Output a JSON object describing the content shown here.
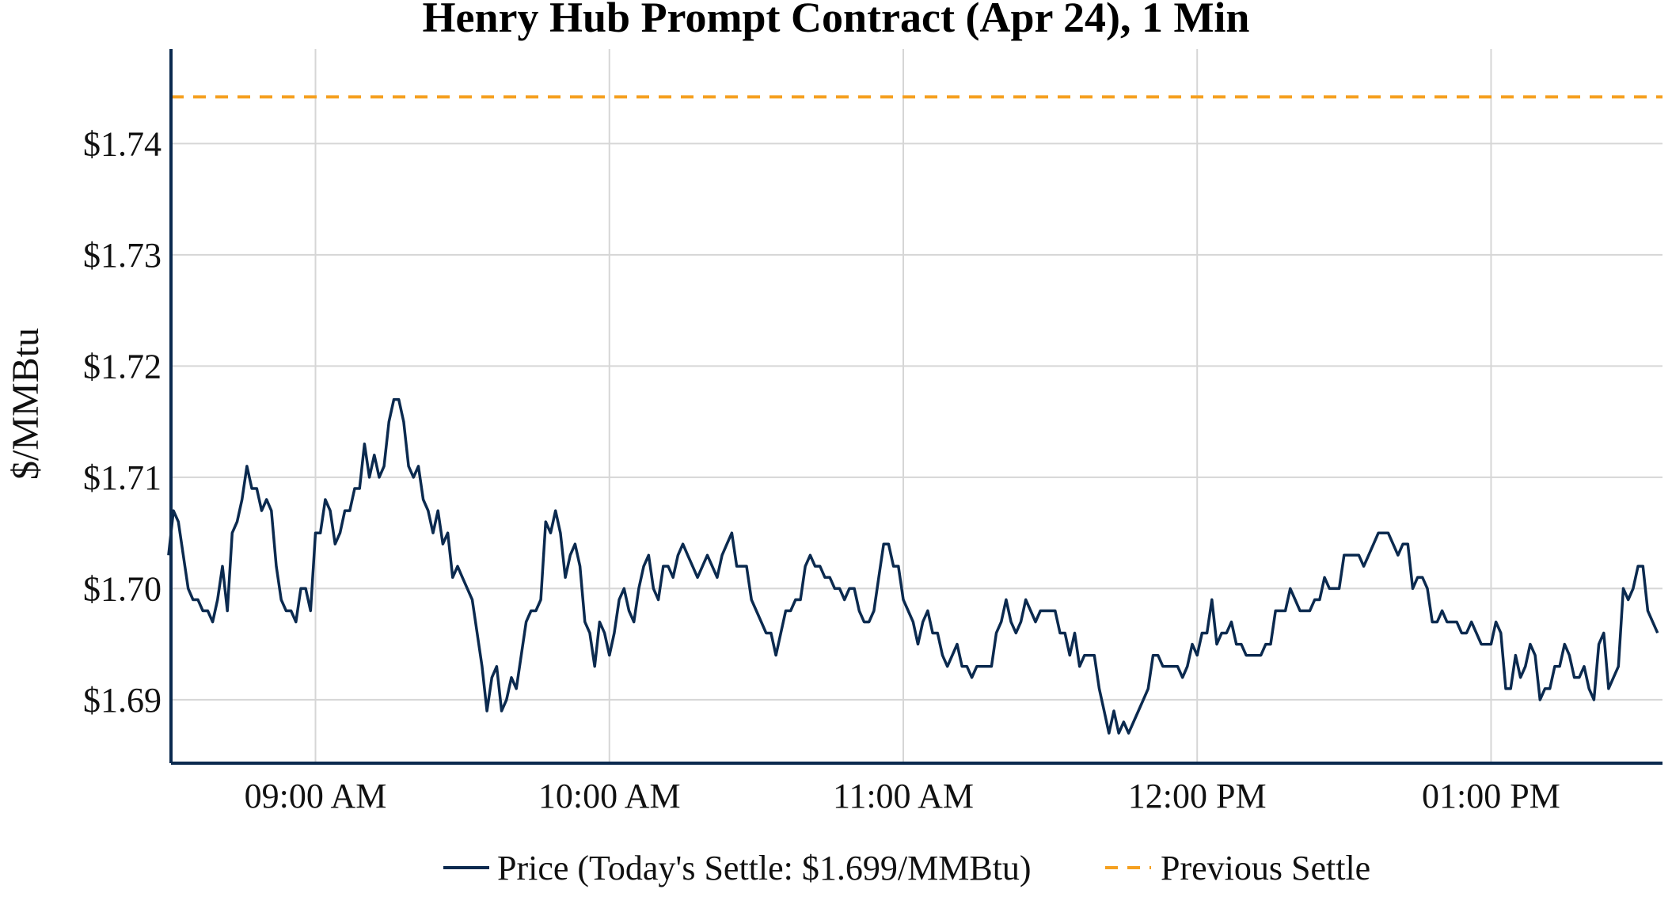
{
  "chart_data": {
    "type": "line",
    "title": "Henry Hub Prompt Contract (Apr 24), 1 Min",
    "ylabel": "$/MMBtu",
    "xlabel": "",
    "x_ticks": [
      {
        "label": "09:00 AM",
        "minutes": 540
      },
      {
        "label": "10:00 AM",
        "minutes": 600
      },
      {
        "label": "11:00 AM",
        "minutes": 660
      },
      {
        "label": "12:00 PM",
        "minutes": 720
      },
      {
        "label": "01:00 PM",
        "minutes": 780
      }
    ],
    "y_ticks": [
      {
        "label": "$1.69",
        "value": 1.69
      },
      {
        "label": "$1.70",
        "value": 1.7
      },
      {
        "label": "$1.71",
        "value": 1.71
      },
      {
        "label": "$1.72",
        "value": 1.72
      },
      {
        "label": "$1.73",
        "value": 1.73
      },
      {
        "label": "$1.74",
        "value": 1.74
      }
    ],
    "xlim": [
      510.5,
      815
    ],
    "ylim": [
      1.6843,
      1.7485
    ],
    "grid": true,
    "legend_placement": "bottom-center",
    "reference_line": {
      "name": "Previous Settle",
      "value": 1.7442,
      "color": "#f5a020",
      "style": "dashed"
    },
    "series": [
      {
        "name": "Price (Today's Settle: $1.699/MMBtu)",
        "color": "#0b2a4f",
        "start_minutes": 510,
        "step_minutes": 1,
        "values": [
          1.703,
          1.707,
          1.706,
          1.703,
          1.7,
          1.699,
          1.699,
          1.698,
          1.698,
          1.697,
          1.699,
          1.702,
          1.698,
          1.705,
          1.706,
          1.708,
          1.711,
          1.709,
          1.709,
          1.707,
          1.708,
          1.707,
          1.702,
          1.699,
          1.698,
          1.698,
          1.697,
          1.7,
          1.7,
          1.698,
          1.705,
          1.705,
          1.708,
          1.707,
          1.704,
          1.705,
          1.707,
          1.707,
          1.709,
          1.709,
          1.713,
          1.71,
          1.712,
          1.71,
          1.711,
          1.715,
          1.717,
          1.717,
          1.715,
          1.711,
          1.71,
          1.711,
          1.708,
          1.707,
          1.705,
          1.707,
          1.704,
          1.705,
          1.701,
          1.702,
          1.701,
          1.7,
          1.699,
          1.696,
          1.693,
          1.689,
          1.692,
          1.693,
          1.689,
          1.69,
          1.692,
          1.691,
          1.694,
          1.697,
          1.698,
          1.698,
          1.699,
          1.706,
          1.705,
          1.707,
          1.705,
          1.701,
          1.703,
          1.704,
          1.702,
          1.697,
          1.696,
          1.693,
          1.697,
          1.696,
          1.694,
          1.696,
          1.699,
          1.7,
          1.698,
          1.697,
          1.7,
          1.702,
          1.703,
          1.7,
          1.699,
          1.702,
          1.702,
          1.701,
          1.703,
          1.704,
          1.703,
          1.702,
          1.701,
          1.702,
          1.703,
          1.702,
          1.701,
          1.703,
          1.704,
          1.705,
          1.702,
          1.702,
          1.702,
          1.699,
          1.698,
          1.697,
          1.696,
          1.696,
          1.694,
          1.696,
          1.698,
          1.698,
          1.699,
          1.699,
          1.702,
          1.703,
          1.702,
          1.702,
          1.701,
          1.701,
          1.7,
          1.7,
          1.699,
          1.7,
          1.7,
          1.698,
          1.697,
          1.697,
          1.698,
          1.701,
          1.704,
          1.704,
          1.702,
          1.702,
          1.699,
          1.698,
          1.697,
          1.695,
          1.697,
          1.698,
          1.696,
          1.696,
          1.694,
          1.693,
          1.694,
          1.695,
          1.693,
          1.693,
          1.692,
          1.693,
          1.693,
          1.693,
          1.693,
          1.696,
          1.697,
          1.699,
          1.697,
          1.696,
          1.697,
          1.699,
          1.698,
          1.697,
          1.698,
          1.698,
          1.698,
          1.698,
          1.696,
          1.696,
          1.694,
          1.696,
          1.693,
          1.694,
          1.694,
          1.694,
          1.691,
          1.689,
          1.687,
          1.689,
          1.687,
          1.688,
          1.687,
          1.688,
          1.689,
          1.69,
          1.691,
          1.694,
          1.694,
          1.693,
          1.693,
          1.693,
          1.693,
          1.692,
          1.693,
          1.695,
          1.694,
          1.696,
          1.696,
          1.699,
          1.695,
          1.696,
          1.696,
          1.697,
          1.695,
          1.695,
          1.694,
          1.694,
          1.694,
          1.694,
          1.695,
          1.695,
          1.698,
          1.698,
          1.698,
          1.7,
          1.699,
          1.698,
          1.698,
          1.698,
          1.699,
          1.699,
          1.701,
          1.7,
          1.7,
          1.7,
          1.703,
          1.703,
          1.703,
          1.703,
          1.702,
          1.703,
          1.704,
          1.705,
          1.705,
          1.705,
          1.704,
          1.703,
          1.704,
          1.704,
          1.7,
          1.701,
          1.701,
          1.7,
          1.697,
          1.697,
          1.698,
          1.697,
          1.697,
          1.697,
          1.696,
          1.696,
          1.697,
          1.696,
          1.695,
          1.695,
          1.695,
          1.697,
          1.696,
          1.691,
          1.691,
          1.694,
          1.692,
          1.693,
          1.695,
          1.694,
          1.69,
          1.691,
          1.691,
          1.693,
          1.693,
          1.695,
          1.694,
          1.692,
          1.692,
          1.693,
          1.691,
          1.69,
          1.695,
          1.696,
          1.691,
          1.692,
          1.693,
          1.7,
          1.699,
          1.7,
          1.702,
          1.702,
          1.698,
          1.697,
          1.696
        ]
      }
    ]
  }
}
